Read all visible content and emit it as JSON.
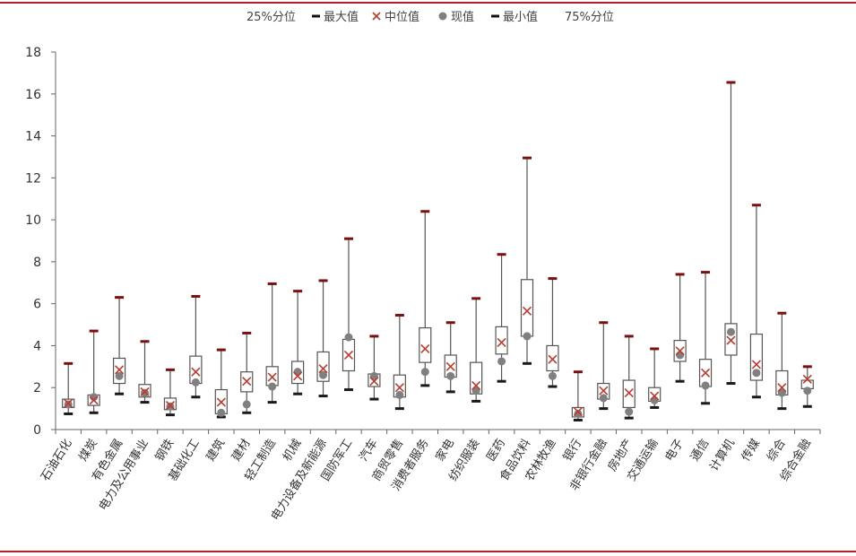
{
  "colors": {
    "rule": "#b51f2a",
    "box_stroke": "#555555",
    "whisker": "#555555",
    "max_marker": "#7a1010",
    "min_marker": "#1a1a1a",
    "median": "#c0392b",
    "current": "#808080",
    "axis": "#666666"
  },
  "legend": [
    {
      "label": "25%分位",
      "icon": "none"
    },
    {
      "label": "最大值",
      "icon": "dash"
    },
    {
      "label": "中位值",
      "icon": "cross"
    },
    {
      "label": "现值",
      "icon": "dot"
    },
    {
      "label": "最小值",
      "icon": "dash"
    },
    {
      "label": "75%分位",
      "icon": "none"
    }
  ],
  "chart_data": {
    "type": "box",
    "ylim": [
      0,
      18
    ],
    "yticks": [
      0,
      2,
      4,
      6,
      8,
      10,
      12,
      14,
      16,
      18
    ],
    "grid": false,
    "legend_position": "top",
    "categories": [
      "石油石化",
      "煤炭",
      "有色金属",
      "电力及公用事业",
      "钢铁",
      "基础化工",
      "建筑",
      "建材",
      "轻工制造",
      "机械",
      "电力设备及新能源",
      "国防军工",
      "汽车",
      "商贸零售",
      "消费者服务",
      "家电",
      "纺织服装",
      "医药",
      "食品饮料",
      "农林牧渔",
      "银行",
      "非银行金融",
      "房地产",
      "交通运输",
      "电子",
      "通信",
      "计算机",
      "传媒",
      "综合",
      "综合金融"
    ],
    "max": [
      3.15,
      4.7,
      6.3,
      4.2,
      2.85,
      6.35,
      3.8,
      4.6,
      6.95,
      6.6,
      7.1,
      9.1,
      4.45,
      5.45,
      10.4,
      5.1,
      6.25,
      8.35,
      12.95,
      7.2,
      2.75,
      5.1,
      4.45,
      3.85,
      7.4,
      7.5,
      16.55,
      10.7,
      5.55,
      3.0
    ],
    "q75": [
      1.45,
      1.65,
      3.4,
      2.15,
      1.5,
      3.5,
      1.9,
      2.75,
      3.0,
      3.25,
      3.7,
      4.3,
      2.65,
      2.6,
      4.85,
      3.55,
      3.2,
      4.9,
      7.15,
      4.0,
      1.05,
      2.2,
      2.35,
      2.0,
      4.25,
      3.35,
      5.05,
      4.55,
      2.8,
      2.35
    ],
    "median": [
      1.25,
      1.4,
      2.85,
      1.8,
      1.15,
      2.75,
      1.3,
      2.3,
      2.5,
      2.55,
      2.9,
      3.55,
      2.3,
      2.0,
      3.85,
      3.0,
      2.1,
      4.15,
      5.65,
      3.35,
      0.85,
      1.85,
      1.75,
      1.6,
      3.75,
      2.7,
      4.25,
      3.1,
      2.0,
      2.4
    ],
    "q25": [
      1.05,
      1.15,
      2.2,
      1.55,
      0.95,
      2.2,
      0.75,
      1.8,
      2.1,
      2.2,
      2.3,
      2.8,
      2.05,
      1.55,
      3.2,
      2.5,
      1.7,
      3.6,
      4.45,
      2.8,
      0.6,
      1.45,
      1.05,
      1.35,
      3.25,
      2.05,
      3.55,
      2.35,
      1.65,
      1.95
    ],
    "min": [
      0.75,
      0.8,
      1.7,
      1.3,
      0.7,
      1.55,
      0.6,
      0.8,
      1.3,
      1.7,
      1.6,
      1.9,
      1.45,
      1.0,
      2.1,
      1.8,
      1.35,
      2.3,
      3.15,
      2.05,
      0.45,
      1.0,
      0.55,
      1.05,
      2.3,
      1.25,
      2.2,
      1.55,
      1.0,
      1.1
    ],
    "current": [
      1.2,
      1.55,
      2.55,
      1.75,
      1.1,
      2.25,
      0.8,
      1.2,
      2.05,
      2.75,
      2.6,
      4.4,
      2.55,
      1.65,
      2.75,
      2.55,
      1.85,
      3.25,
      4.45,
      2.55,
      0.75,
      1.5,
      0.85,
      1.4,
      3.55,
      2.1,
      4.65,
      2.7,
      1.75,
      1.85
    ]
  }
}
